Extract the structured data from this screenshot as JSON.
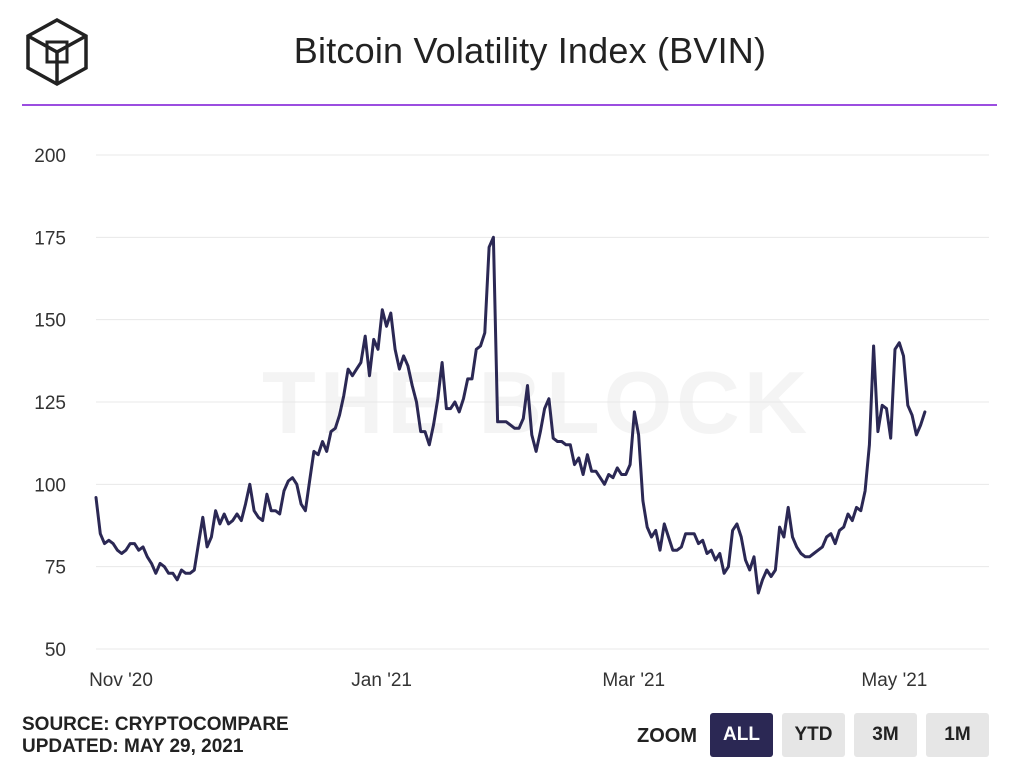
{
  "header": {
    "title": "Bitcoin Volatility Index (BVIN)",
    "logo": "the-block-cube-logo"
  },
  "watermark": "THE BLOCK",
  "footer": {
    "source": "SOURCE: CRYPTOCOMPARE",
    "updated": "UPDATED: MAY 29, 2021"
  },
  "zoom": {
    "label": "ZOOM",
    "buttons": [
      "ALL",
      "YTD",
      "3M",
      "1M"
    ],
    "selected": "ALL"
  },
  "colors": {
    "line": "#2b2854",
    "accent": "#9b4de0",
    "grid": "#e8e8e8",
    "active_button": "#2b2854"
  },
  "chart_data": {
    "type": "line",
    "title": "Bitcoin Volatility Index (BVIN)",
    "xlabel": "",
    "ylabel": "",
    "ylim": [
      50,
      200
    ],
    "yticks": [
      50,
      75,
      100,
      125,
      150,
      175,
      200
    ],
    "xlim": [
      "2020-11-01",
      "2021-05-29"
    ],
    "xticks": [
      {
        "label": "Nov '20",
        "date": "2020-11-01"
      },
      {
        "label": "Jan '21",
        "date": "2021-01-01"
      },
      {
        "label": "Mar '21",
        "date": "2021-03-01"
      },
      {
        "label": "May '21",
        "date": "2021-05-01"
      }
    ],
    "grid": true,
    "series": [
      {
        "values": [
          [
            "2020-11-01",
            96
          ],
          [
            "2020-11-02",
            85
          ],
          [
            "2020-11-03",
            82
          ],
          [
            "2020-11-04",
            83
          ],
          [
            "2020-11-05",
            82
          ],
          [
            "2020-11-06",
            80
          ],
          [
            "2020-11-07",
            79
          ],
          [
            "2020-11-08",
            80
          ],
          [
            "2020-11-09",
            82
          ],
          [
            "2020-11-10",
            82
          ],
          [
            "2020-11-11",
            80
          ],
          [
            "2020-11-12",
            81
          ],
          [
            "2020-11-13",
            78
          ],
          [
            "2020-11-14",
            76
          ],
          [
            "2020-11-15",
            73
          ],
          [
            "2020-11-16",
            76
          ],
          [
            "2020-11-17",
            75
          ],
          [
            "2020-11-18",
            73
          ],
          [
            "2020-11-19",
            73
          ],
          [
            "2020-11-20",
            71
          ],
          [
            "2020-11-21",
            74
          ],
          [
            "2020-11-22",
            73
          ],
          [
            "2020-11-23",
            73
          ],
          [
            "2020-11-24",
            74
          ],
          [
            "2020-11-25",
            82
          ],
          [
            "2020-11-26",
            90
          ],
          [
            "2020-11-27",
            81
          ],
          [
            "2020-11-28",
            84
          ],
          [
            "2020-11-29",
            92
          ],
          [
            "2020-11-30",
            88
          ],
          [
            "2020-12-01",
            91
          ],
          [
            "2020-12-02",
            88
          ],
          [
            "2020-12-03",
            89
          ],
          [
            "2020-12-04",
            91
          ],
          [
            "2020-12-05",
            89
          ],
          [
            "2020-12-06",
            94
          ],
          [
            "2020-12-07",
            100
          ],
          [
            "2020-12-08",
            92
          ],
          [
            "2020-12-09",
            90
          ],
          [
            "2020-12-10",
            89
          ],
          [
            "2020-12-11",
            97
          ],
          [
            "2020-12-12",
            92
          ],
          [
            "2020-12-13",
            92
          ],
          [
            "2020-12-14",
            91
          ],
          [
            "2020-12-15",
            98
          ],
          [
            "2020-12-16",
            101
          ],
          [
            "2020-12-17",
            102
          ],
          [
            "2020-12-18",
            100
          ],
          [
            "2020-12-19",
            94
          ],
          [
            "2020-12-20",
            92
          ],
          [
            "2020-12-21",
            101
          ],
          [
            "2020-12-22",
            110
          ],
          [
            "2020-12-23",
            109
          ],
          [
            "2020-12-24",
            113
          ],
          [
            "2020-12-25",
            110
          ],
          [
            "2020-12-26",
            116
          ],
          [
            "2020-12-27",
            117
          ],
          [
            "2020-12-28",
            121
          ],
          [
            "2020-12-29",
            127
          ],
          [
            "2020-12-30",
            135
          ],
          [
            "2020-12-31",
            133
          ],
          [
            "2021-01-01",
            135
          ],
          [
            "2021-01-02",
            137
          ],
          [
            "2021-01-03",
            145
          ],
          [
            "2021-01-04",
            133
          ],
          [
            "2021-01-05",
            144
          ],
          [
            "2021-01-06",
            141
          ],
          [
            "2021-01-07",
            153
          ],
          [
            "2021-01-08",
            148
          ],
          [
            "2021-01-09",
            152
          ],
          [
            "2021-01-10",
            141
          ],
          [
            "2021-01-11",
            135
          ],
          [
            "2021-01-12",
            139
          ],
          [
            "2021-01-13",
            136
          ],
          [
            "2021-01-14",
            130
          ],
          [
            "2021-01-15",
            125
          ],
          [
            "2021-01-16",
            116
          ],
          [
            "2021-01-17",
            116
          ],
          [
            "2021-01-18",
            112
          ],
          [
            "2021-01-19",
            118
          ],
          [
            "2021-01-20",
            126
          ],
          [
            "2021-01-21",
            137
          ],
          [
            "2021-01-22",
            123
          ],
          [
            "2021-01-23",
            123
          ],
          [
            "2021-01-24",
            125
          ],
          [
            "2021-01-25",
            122
          ],
          [
            "2021-01-26",
            126
          ],
          [
            "2021-01-27",
            132
          ],
          [
            "2021-01-28",
            132
          ],
          [
            "2021-01-29",
            141
          ],
          [
            "2021-01-30",
            142
          ],
          [
            "2021-01-31",
            146
          ],
          [
            "2021-02-01",
            172
          ],
          [
            "2021-02-02",
            175
          ],
          [
            "2021-02-03",
            119
          ],
          [
            "2021-02-04",
            119
          ],
          [
            "2021-02-05",
            119
          ],
          [
            "2021-02-06",
            118
          ],
          [
            "2021-02-07",
            117
          ],
          [
            "2021-02-08",
            117
          ],
          [
            "2021-02-09",
            120
          ],
          [
            "2021-02-10",
            130
          ],
          [
            "2021-02-11",
            115
          ],
          [
            "2021-02-12",
            110
          ],
          [
            "2021-02-13",
            116
          ],
          [
            "2021-02-14",
            123
          ],
          [
            "2021-02-15",
            126
          ],
          [
            "2021-02-16",
            114
          ],
          [
            "2021-02-17",
            113
          ],
          [
            "2021-02-18",
            113
          ],
          [
            "2021-02-19",
            112
          ],
          [
            "2021-02-20",
            112
          ],
          [
            "2021-02-21",
            106
          ],
          [
            "2021-02-22",
            108
          ],
          [
            "2021-02-23",
            103
          ],
          [
            "2021-02-24",
            109
          ],
          [
            "2021-02-25",
            104
          ],
          [
            "2021-02-26",
            104
          ],
          [
            "2021-02-27",
            102
          ],
          [
            "2021-02-28",
            100
          ],
          [
            "2021-03-01",
            103
          ],
          [
            "2021-03-02",
            102
          ],
          [
            "2021-03-03",
            105
          ],
          [
            "2021-03-04",
            103
          ],
          [
            "2021-03-05",
            103
          ],
          [
            "2021-03-06",
            106
          ],
          [
            "2021-03-07",
            122
          ],
          [
            "2021-03-08",
            115
          ],
          [
            "2021-03-09",
            95
          ],
          [
            "2021-03-10",
            87
          ],
          [
            "2021-03-11",
            84
          ],
          [
            "2021-03-12",
            86
          ],
          [
            "2021-03-13",
            80
          ],
          [
            "2021-03-14",
            88
          ],
          [
            "2021-03-15",
            84
          ],
          [
            "2021-03-16",
            80
          ],
          [
            "2021-03-17",
            80
          ],
          [
            "2021-03-18",
            81
          ],
          [
            "2021-03-19",
            85
          ],
          [
            "2021-03-20",
            85
          ],
          [
            "2021-03-21",
            85
          ],
          [
            "2021-03-22",
            82
          ],
          [
            "2021-03-23",
            83
          ],
          [
            "2021-03-24",
            79
          ],
          [
            "2021-03-25",
            80
          ],
          [
            "2021-03-26",
            77
          ],
          [
            "2021-03-27",
            79
          ],
          [
            "2021-03-28",
            73
          ],
          [
            "2021-03-29",
            75
          ],
          [
            "2021-03-30",
            86
          ],
          [
            "2021-03-31",
            88
          ],
          [
            "2021-04-01",
            84
          ],
          [
            "2021-04-02",
            77
          ],
          [
            "2021-04-03",
            74
          ],
          [
            "2021-04-04",
            78
          ],
          [
            "2021-04-05",
            67
          ],
          [
            "2021-04-06",
            71
          ],
          [
            "2021-04-07",
            74
          ],
          [
            "2021-04-08",
            72
          ],
          [
            "2021-04-09",
            74
          ],
          [
            "2021-04-10",
            87
          ],
          [
            "2021-04-11",
            84
          ],
          [
            "2021-04-12",
            93
          ],
          [
            "2021-04-13",
            84
          ],
          [
            "2021-04-14",
            81
          ],
          [
            "2021-04-15",
            79
          ],
          [
            "2021-04-16",
            78
          ],
          [
            "2021-04-17",
            78
          ],
          [
            "2021-04-18",
            79
          ],
          [
            "2021-04-19",
            80
          ],
          [
            "2021-04-20",
            81
          ],
          [
            "2021-04-21",
            84
          ],
          [
            "2021-04-22",
            85
          ],
          [
            "2021-04-23",
            82
          ],
          [
            "2021-04-24",
            86
          ],
          [
            "2021-04-25",
            87
          ],
          [
            "2021-04-26",
            91
          ],
          [
            "2021-04-27",
            89
          ],
          [
            "2021-04-28",
            93
          ],
          [
            "2021-04-29",
            92
          ],
          [
            "2021-04-30",
            98
          ],
          [
            "2021-05-01",
            112
          ],
          [
            "2021-05-02",
            142
          ],
          [
            "2021-05-03",
            116
          ],
          [
            "2021-05-04",
            124
          ],
          [
            "2021-05-05",
            123
          ],
          [
            "2021-05-06",
            114
          ],
          [
            "2021-05-07",
            141
          ],
          [
            "2021-05-08",
            143
          ],
          [
            "2021-05-09",
            139
          ],
          [
            "2021-05-10",
            124
          ],
          [
            "2021-05-11",
            121
          ],
          [
            "2021-05-12",
            115
          ],
          [
            "2021-05-13",
            118
          ],
          [
            "2021-05-14",
            122
          ]
        ]
      }
    ]
  }
}
